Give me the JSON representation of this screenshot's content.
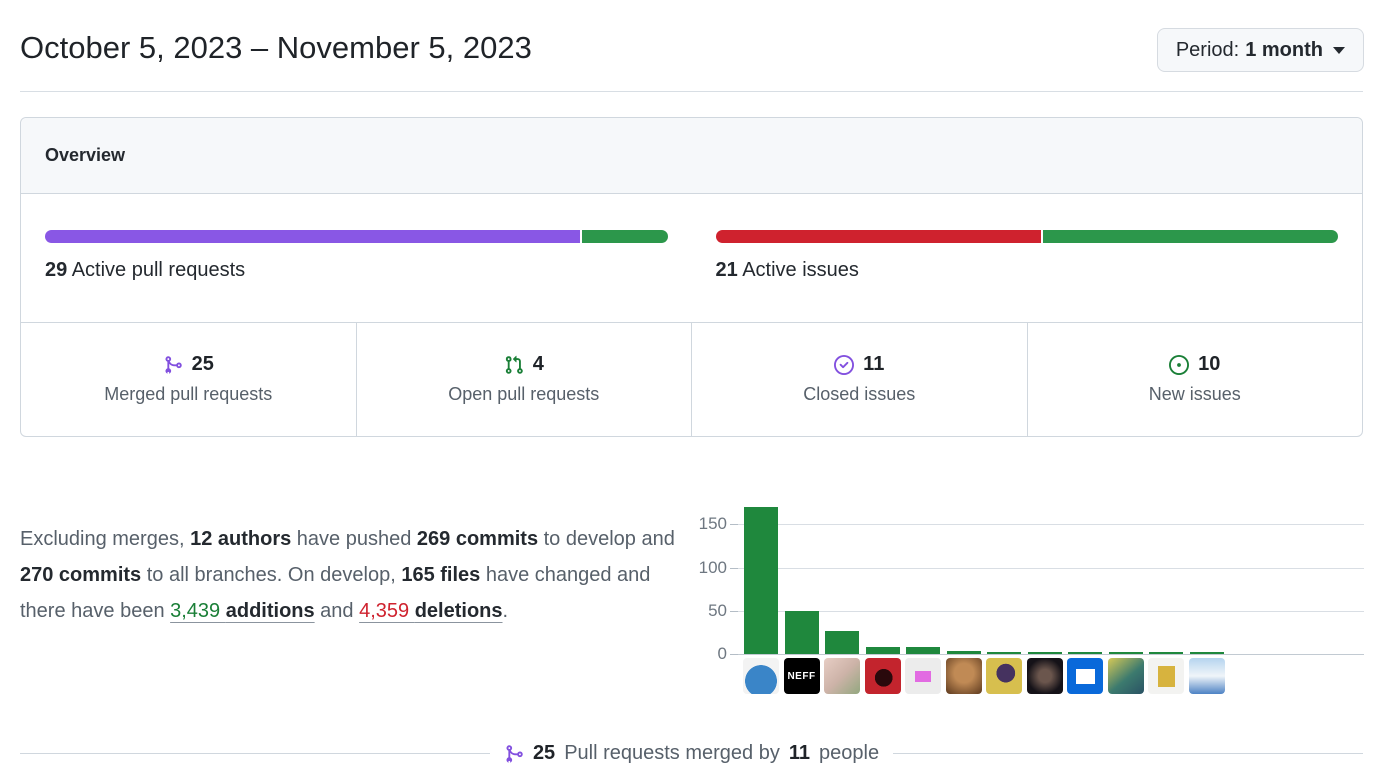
{
  "header": {
    "title": "October 5, 2023 – November 5, 2023",
    "period_label": "Period:",
    "period_value": "1 month"
  },
  "overview": {
    "title": "Overview",
    "pull_requests": {
      "count": "29",
      "label": "Active pull requests",
      "merged": 25,
      "open": 4,
      "merged_color": "#8957e5",
      "open_color": "#2c974b"
    },
    "issues": {
      "count": "21",
      "label": "Active issues",
      "closed": 11,
      "new": 10,
      "closed_color": "#cf222e",
      "new_color": "#2c974b"
    },
    "stats": [
      {
        "icon": "git-merge-icon",
        "icon_color": "#8250df",
        "value": "25",
        "label": "Merged pull requests"
      },
      {
        "icon": "git-pull-request-icon",
        "icon_color": "#1a7f37",
        "value": "4",
        "label": "Open pull requests"
      },
      {
        "icon": "issue-closed-icon",
        "icon_color": "#8250df",
        "value": "11",
        "label": "Closed issues"
      },
      {
        "icon": "issue-opened-icon",
        "icon_color": "#1a7f37",
        "value": "10",
        "label": "New issues"
      }
    ]
  },
  "summary": {
    "segments": [
      {
        "text": "Excluding merges, ",
        "style": "muted"
      },
      {
        "text": "12 authors",
        "style": "strong"
      },
      {
        "text": " have pushed ",
        "style": "muted"
      },
      {
        "text": "269 commits",
        "style": "strong"
      },
      {
        "text": " to develop and ",
        "style": "muted"
      },
      {
        "text": "270 commits",
        "style": "strong"
      },
      {
        "text": " to all branches. On develop, ",
        "style": "muted"
      },
      {
        "text": "165 files",
        "style": "strong"
      },
      {
        "text": " have changed and there have been ",
        "style": "muted"
      },
      {
        "text": "3,439 ",
        "style": "num-add"
      },
      {
        "text": "additions",
        "style": "link-strong"
      },
      {
        "text": " and ",
        "style": "muted"
      },
      {
        "text": "4,359 ",
        "style": "num-del"
      },
      {
        "text": "deletions",
        "style": "link-strong"
      },
      {
        "text": ".",
        "style": "muted"
      }
    ]
  },
  "chart_data": {
    "type": "bar",
    "title": "",
    "categories": [
      "author-1",
      "author-2",
      "author-3",
      "author-4",
      "author-5",
      "author-6",
      "author-7",
      "author-8",
      "author-9",
      "author-10",
      "author-11",
      "author-12"
    ],
    "values": [
      170,
      50,
      27,
      8,
      8,
      3,
      2,
      2,
      2,
      2,
      2,
      2
    ],
    "xlabel": "",
    "ylabel": "",
    "yticks": [
      0,
      50,
      100,
      150
    ],
    "ylim": [
      0,
      185
    ],
    "bar_color": "#1f883d",
    "grid": true,
    "legend": false
  },
  "avatars": [
    {
      "name": "author-avatar-1",
      "bg": "radial-gradient(circle at 50% 64%, #3a85c8 54%, #f3f3f3 55%)",
      "label": "",
      "fg": ""
    },
    {
      "name": "author-avatar-2",
      "bg": "#000000",
      "label": "NEFF",
      "fg": "#ffffff"
    },
    {
      "name": "author-avatar-3",
      "bg": "linear-gradient(135deg, #e7cdc4 0%, #cdb3a8 50%, #93a77f 100%)",
      "label": "",
      "fg": ""
    },
    {
      "name": "author-avatar-4",
      "bg": "radial-gradient(circle at 52% 55%, #2a090c 32%, #c3242d 33%)",
      "label": "",
      "fg": ""
    },
    {
      "name": "author-avatar-5",
      "bg": "linear-gradient(#e26be2,#e26be2) center/16px 11px no-repeat #ececec",
      "label": "",
      "fg": ""
    },
    {
      "name": "author-avatar-6",
      "bg": "radial-gradient(circle at 50% 42%, #c08a55 35%, #6b4526 90%)",
      "label": "",
      "fg": ""
    },
    {
      "name": "author-avatar-7",
      "bg": "radial-gradient(circle at 55% 42%, #45325f 32%, #d7bf4e 33%)",
      "label": "",
      "fg": ""
    },
    {
      "name": "author-avatar-8",
      "bg": "radial-gradient(circle at 50% 50%, #6b564d 25%, #151218 70%)",
      "label": "",
      "fg": ""
    },
    {
      "name": "author-avatar-9",
      "bg": "linear-gradient(#ffffff,#ffffff) center/19px 15px no-repeat #0969da",
      "label": "",
      "fg": ""
    },
    {
      "name": "author-avatar-10",
      "bg": "linear-gradient(140deg, #d6c957 0%, #3c7a6e 55%, #2a5264 100%)",
      "label": "",
      "fg": ""
    },
    {
      "name": "author-avatar-11",
      "bg": "linear-gradient(#d7b33e,#d7b33e) center/17px 21px no-repeat #f3f3f1",
      "label": "",
      "fg": ""
    },
    {
      "name": "author-avatar-12",
      "bg": "linear-gradient(180deg, #b5d4ef 0%, #f0f5f9 50%, #4d82c4 100%)",
      "label": "",
      "fg": ""
    }
  ],
  "footer": {
    "count": "25",
    "text": "Pull requests merged by",
    "people_count": "11",
    "suffix": "people"
  }
}
